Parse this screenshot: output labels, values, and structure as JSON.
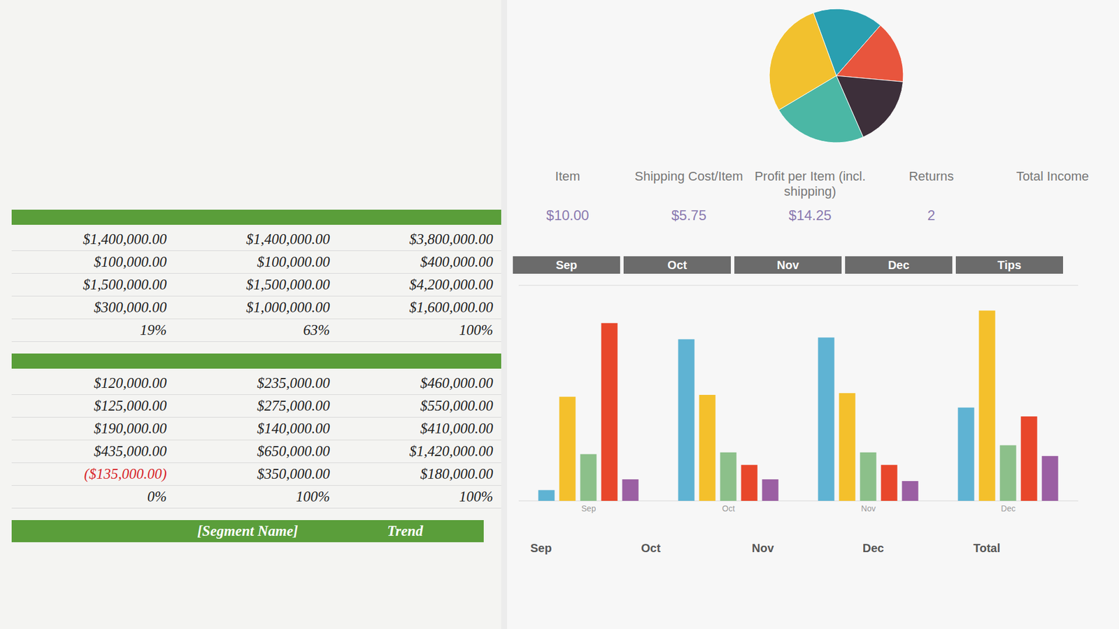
{
  "tables": [
    {
      "rows": [
        [
          "$1,400,000.00",
          "$1,400,000.00",
          "$3,800,000.00"
        ],
        [
          "$100,000.00",
          "$100,000.00",
          "$400,000.00"
        ],
        [
          "$1,500,000.00",
          "$1,500,000.00",
          "$4,200,000.00"
        ],
        [
          "$300,000.00",
          "$1,000,000.00",
          "$1,600,000.00"
        ],
        [
          "19%",
          "63%",
          "100%"
        ]
      ]
    },
    {
      "rows": [
        [
          "$120,000.00",
          "$235,000.00",
          "$460,000.00"
        ],
        [
          "$125,000.00",
          "$275,000.00",
          "$550,000.00"
        ],
        [
          "$190,000.00",
          "$140,000.00",
          "$410,000.00"
        ],
        [
          "$435,000.00",
          "$650,000.00",
          "$1,420,000.00"
        ],
        [
          "($135,000.00)",
          "$350,000.00",
          "$180,000.00"
        ],
        [
          "0%",
          "100%",
          "100%"
        ]
      ]
    }
  ],
  "segment_header": [
    "[Segment Name]",
    "Trend"
  ],
  "info": {
    "columns": [
      "Item",
      "Shipping Cost/Item",
      "Profit per Item (incl. shipping)",
      "Returns",
      "Total Income"
    ],
    "values": [
      "$10.00",
      "$5.75",
      "$14.25",
      "2"
    ]
  },
  "month_band": [
    "Sep",
    "Oct",
    "Nov",
    "Dec",
    "Tips"
  ],
  "summary_header": [
    "Sep",
    "Oct",
    "Nov",
    "Dec",
    "Total"
  ],
  "chart_data": [
    {
      "type": "pie",
      "values": [
        17,
        15,
        17,
        23,
        28
      ],
      "colors": [
        "#2a9fb0",
        "#e8553d",
        "#3d2f3a",
        "#4bb7a5",
        "#f2c12e"
      ]
    },
    {
      "type": "bar",
      "categories": [
        "Sep",
        "Oct",
        "Nov",
        "Dec"
      ],
      "series": [
        {
          "color": "#5fb3d3",
          "values": [
            6,
            90,
            91,
            52
          ]
        },
        {
          "color": "#f4c02c",
          "values": [
            58,
            59,
            60,
            106
          ]
        },
        {
          "color": "#8cc08a",
          "values": [
            26,
            27,
            27,
            31
          ]
        },
        {
          "color": "#e8472b",
          "values": [
            99,
            20,
            20,
            47
          ]
        },
        {
          "color": "#9b5fa3",
          "values": [
            12,
            12,
            11,
            25
          ]
        }
      ],
      "ylim": [
        0,
        120
      ],
      "yticks": [
        0,
        20,
        40,
        60,
        80,
        100,
        120
      ],
      "grid": true,
      "tick_labels": "x"
    }
  ]
}
